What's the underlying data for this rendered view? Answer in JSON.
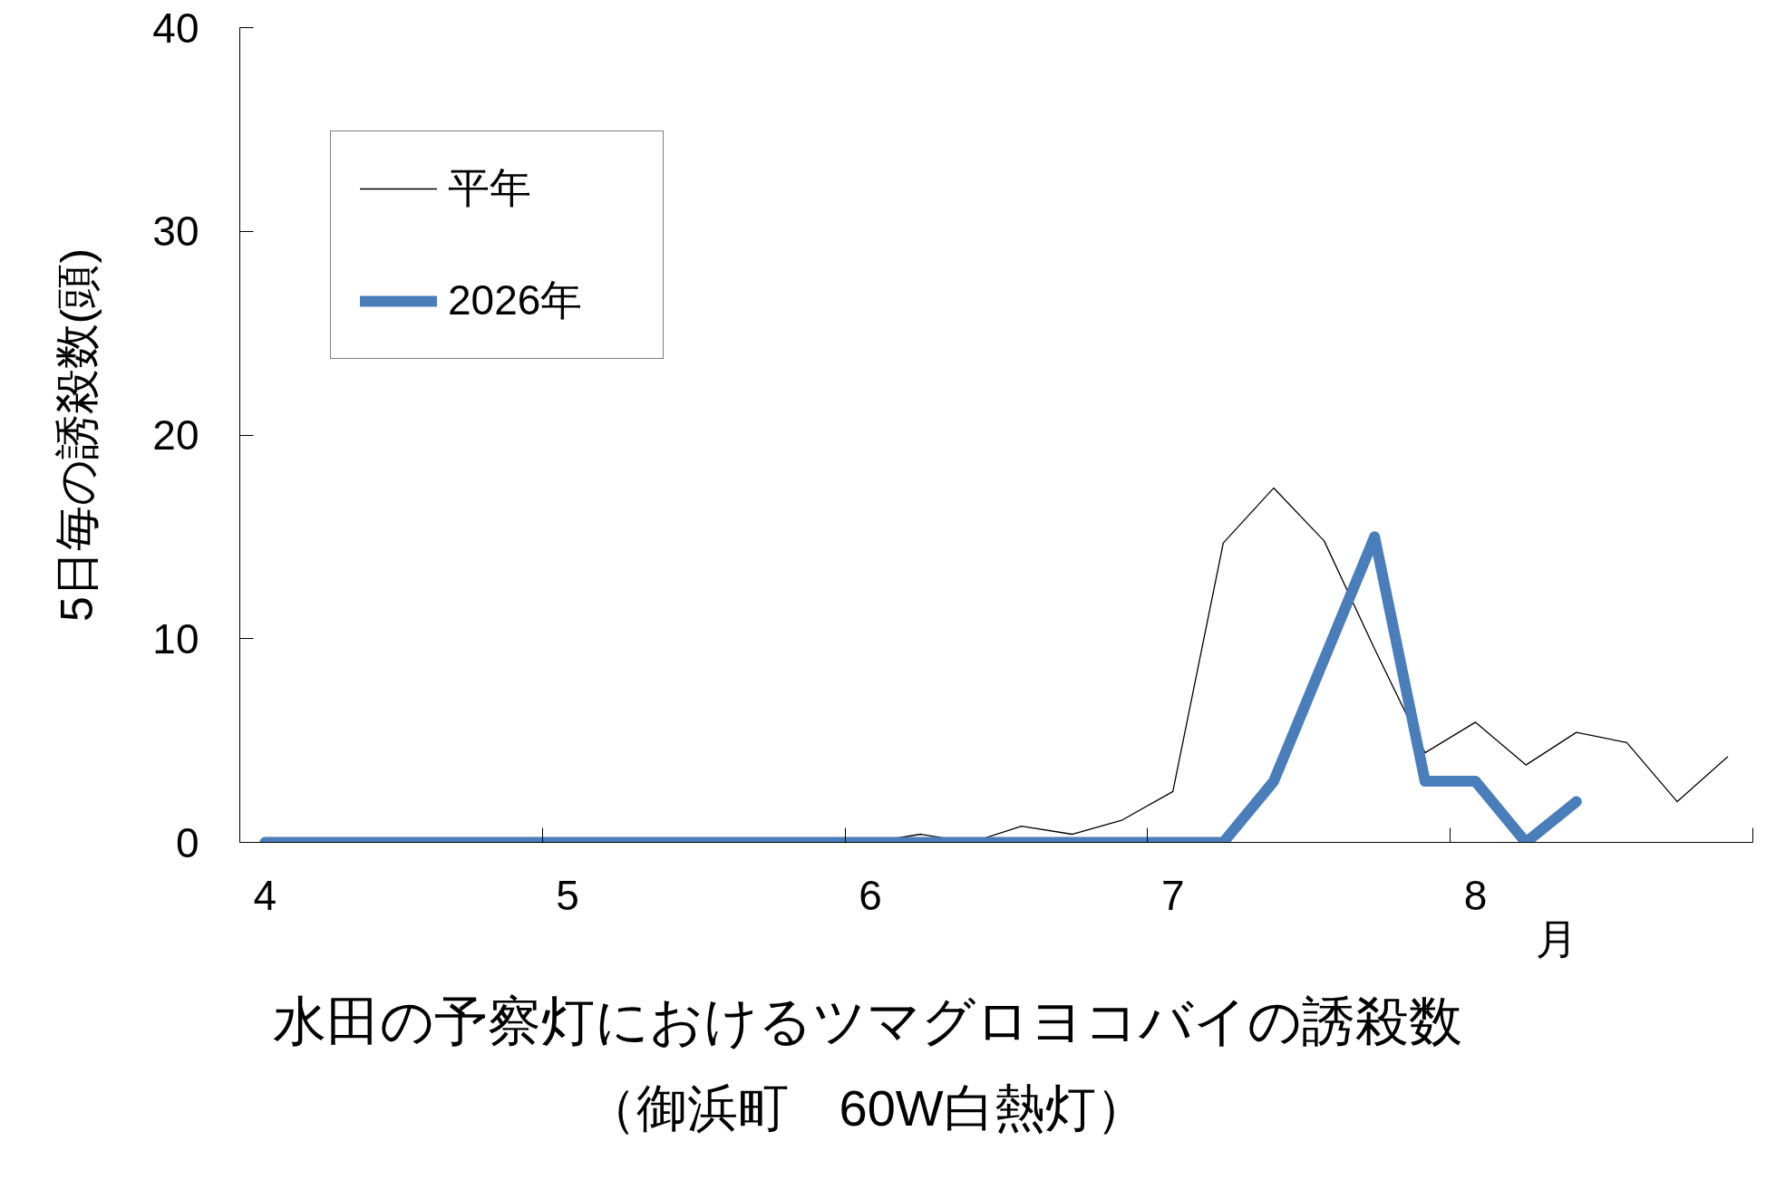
{
  "chart_data": {
    "type": "line",
    "title": "水田の予察灯におけるツマグロヨコバイの誘殺数",
    "subtitle": "（御浜町　60W白熱灯）",
    "xlabel": "月",
    "ylabel": "5日毎の誘殺数(頭)",
    "categories": [
      "4",
      null,
      null,
      null,
      null,
      null,
      "5",
      null,
      null,
      null,
      null,
      null,
      "6",
      null,
      null,
      null,
      null,
      null,
      "7",
      null,
      null,
      null,
      null,
      null,
      "8",
      null,
      null,
      null,
      null,
      null
    ],
    "series": [
      {
        "name": "平年",
        "color": "#000000",
        "values": [
          null,
          null,
          null,
          null,
          null,
          null,
          null,
          null,
          null,
          null,
          null,
          null,
          0,
          0.4,
          0,
          0.8,
          0.4,
          1.1,
          2.5,
          14.7,
          17.4,
          14.8,
          9.5,
          4.4,
          5.9,
          3.8,
          5.4,
          4.9,
          2.0,
          4.2
        ]
      },
      {
        "name": "2026年",
        "color": "#4a7ebb",
        "values": [
          0,
          0,
          0,
          0,
          0,
          0,
          0,
          0,
          0,
          0,
          0,
          0,
          0,
          0,
          0,
          0,
          0,
          0,
          0,
          0,
          3,
          9,
          15,
          3,
          3,
          0,
          2,
          null,
          null,
          null
        ]
      }
    ],
    "ylim": [
      0,
      40
    ],
    "yticks": [
      0,
      10,
      20,
      30,
      40
    ],
    "legend": "top left",
    "grid": false
  }
}
